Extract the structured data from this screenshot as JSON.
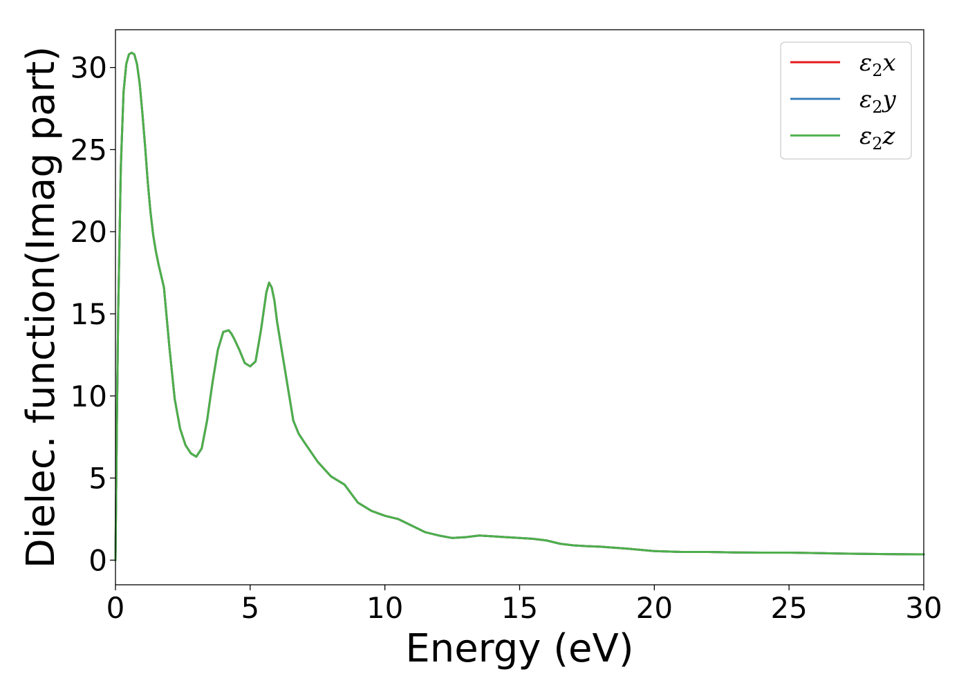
{
  "chart_data": {
    "type": "line",
    "title": "",
    "xlabel": "Energy (eV)",
    "ylabel": "Dielec. function(Imag part)",
    "xlim": [
      0,
      30
    ],
    "ylim": [
      -1.5,
      32.3
    ],
    "xticks": [
      0,
      5,
      10,
      15,
      20,
      25,
      30
    ],
    "yticks": [
      0,
      5,
      10,
      15,
      20,
      25,
      30
    ],
    "grid": false,
    "legend_position": "top-right",
    "series": [
      {
        "name": "ε₂x",
        "legend_base": "ε",
        "legend_sub": "2",
        "legend_var": "x",
        "color": "#e41a1c",
        "x": [
          0,
          0.05,
          0.1,
          0.2,
          0.3,
          0.4,
          0.5,
          0.6,
          0.7,
          0.8,
          0.9,
          1.0,
          1.1,
          1.2,
          1.3,
          1.4,
          1.5,
          1.6,
          1.7,
          1.8,
          2.0,
          2.2,
          2.4,
          2.6,
          2.8,
          3.0,
          3.2,
          3.4,
          3.6,
          3.8,
          4.0,
          4.2,
          4.3,
          4.4,
          4.6,
          4.8,
          5.0,
          5.2,
          5.4,
          5.6,
          5.7,
          5.8,
          5.9,
          6.0,
          6.2,
          6.4,
          6.6,
          6.8,
          7.0,
          7.5,
          8.0,
          8.5,
          9.0,
          9.5,
          10.0,
          10.5,
          11.0,
          11.5,
          12.0,
          12.5,
          13.0,
          13.5,
          14.0,
          14.5,
          15.0,
          15.5,
          16.0,
          16.5,
          17.0,
          17.5,
          18.0,
          19.0,
          20.0,
          21.0,
          22.0,
          23.0,
          24.0,
          25.0,
          26.0,
          27.0,
          28.0,
          29.0,
          30.0
        ],
        "y": [
          0,
          8.0,
          15.0,
          24.0,
          28.5,
          30.2,
          30.8,
          30.9,
          30.8,
          30.2,
          29.0,
          27.2,
          25.2,
          23.0,
          21.2,
          19.8,
          18.8,
          18.0,
          17.3,
          16.6,
          13.0,
          9.8,
          8.0,
          7.0,
          6.5,
          6.3,
          6.8,
          8.5,
          10.8,
          12.8,
          13.9,
          14.0,
          13.8,
          13.5,
          12.8,
          12.0,
          11.8,
          12.1,
          14.0,
          16.3,
          16.9,
          16.6,
          15.8,
          14.5,
          12.5,
          10.5,
          8.5,
          7.7,
          7.2,
          6.0,
          5.1,
          4.6,
          3.5,
          3.0,
          2.7,
          2.5,
          2.1,
          1.7,
          1.5,
          1.35,
          1.4,
          1.5,
          1.45,
          1.4,
          1.35,
          1.3,
          1.2,
          1.0,
          0.9,
          0.85,
          0.82,
          0.7,
          0.55,
          0.5,
          0.5,
          0.47,
          0.46,
          0.46,
          0.43,
          0.4,
          0.38,
          0.36,
          0.35
        ]
      },
      {
        "name": "ε₂y",
        "legend_base": "ε",
        "legend_sub": "2",
        "legend_var": "y",
        "color": "#377eb8",
        "x": [
          0,
          0.05,
          0.1,
          0.2,
          0.3,
          0.4,
          0.5,
          0.6,
          0.7,
          0.8,
          0.9,
          1.0,
          1.1,
          1.2,
          1.3,
          1.4,
          1.5,
          1.6,
          1.7,
          1.8,
          2.0,
          2.2,
          2.4,
          2.6,
          2.8,
          3.0,
          3.2,
          3.4,
          3.6,
          3.8,
          4.0,
          4.2,
          4.3,
          4.4,
          4.6,
          4.8,
          5.0,
          5.2,
          5.4,
          5.6,
          5.7,
          5.8,
          5.9,
          6.0,
          6.2,
          6.4,
          6.6,
          6.8,
          7.0,
          7.5,
          8.0,
          8.5,
          9.0,
          9.5,
          10.0,
          10.5,
          11.0,
          11.5,
          12.0,
          12.5,
          13.0,
          13.5,
          14.0,
          14.5,
          15.0,
          15.5,
          16.0,
          16.5,
          17.0,
          17.5,
          18.0,
          19.0,
          20.0,
          21.0,
          22.0,
          23.0,
          24.0,
          25.0,
          26.0,
          27.0,
          28.0,
          29.0,
          30.0
        ],
        "y": [
          0,
          8.0,
          15.0,
          24.0,
          28.5,
          30.2,
          30.8,
          30.9,
          30.8,
          30.2,
          29.0,
          27.2,
          25.2,
          23.0,
          21.2,
          19.8,
          18.8,
          18.0,
          17.3,
          16.6,
          13.0,
          9.8,
          8.0,
          7.0,
          6.5,
          6.3,
          6.8,
          8.5,
          10.8,
          12.8,
          13.9,
          14.0,
          13.8,
          13.5,
          12.8,
          12.0,
          11.8,
          12.1,
          14.0,
          16.3,
          16.9,
          16.6,
          15.8,
          14.5,
          12.5,
          10.5,
          8.5,
          7.7,
          7.2,
          6.0,
          5.1,
          4.6,
          3.5,
          3.0,
          2.7,
          2.5,
          2.1,
          1.7,
          1.5,
          1.35,
          1.4,
          1.5,
          1.45,
          1.4,
          1.35,
          1.3,
          1.2,
          1.0,
          0.9,
          0.85,
          0.82,
          0.7,
          0.55,
          0.5,
          0.5,
          0.47,
          0.46,
          0.46,
          0.43,
          0.4,
          0.38,
          0.36,
          0.35
        ]
      },
      {
        "name": "ε₂z",
        "legend_base": "ε",
        "legend_sub": "2",
        "legend_var": "z",
        "color": "#4daf4a",
        "x": [
          0,
          0.05,
          0.1,
          0.2,
          0.3,
          0.4,
          0.5,
          0.6,
          0.7,
          0.8,
          0.9,
          1.0,
          1.1,
          1.2,
          1.3,
          1.4,
          1.5,
          1.6,
          1.7,
          1.8,
          2.0,
          2.2,
          2.4,
          2.6,
          2.8,
          3.0,
          3.2,
          3.4,
          3.6,
          3.8,
          4.0,
          4.2,
          4.3,
          4.4,
          4.6,
          4.8,
          5.0,
          5.2,
          5.4,
          5.6,
          5.7,
          5.8,
          5.9,
          6.0,
          6.2,
          6.4,
          6.6,
          6.8,
          7.0,
          7.5,
          8.0,
          8.5,
          9.0,
          9.5,
          10.0,
          10.5,
          11.0,
          11.5,
          12.0,
          12.5,
          13.0,
          13.5,
          14.0,
          14.5,
          15.0,
          15.5,
          16.0,
          16.5,
          17.0,
          17.5,
          18.0,
          19.0,
          20.0,
          21.0,
          22.0,
          23.0,
          24.0,
          25.0,
          26.0,
          27.0,
          28.0,
          29.0,
          30.0
        ],
        "y": [
          0,
          8.0,
          15.0,
          24.0,
          28.5,
          30.2,
          30.8,
          30.9,
          30.8,
          30.2,
          29.0,
          27.2,
          25.2,
          23.0,
          21.2,
          19.8,
          18.8,
          18.0,
          17.3,
          16.6,
          13.0,
          9.8,
          8.0,
          7.0,
          6.5,
          6.3,
          6.8,
          8.5,
          10.8,
          12.8,
          13.9,
          14.0,
          13.8,
          13.5,
          12.8,
          12.0,
          11.8,
          12.1,
          14.0,
          16.3,
          16.9,
          16.6,
          15.8,
          14.5,
          12.5,
          10.5,
          8.5,
          7.7,
          7.2,
          6.0,
          5.1,
          4.6,
          3.5,
          3.0,
          2.7,
          2.5,
          2.1,
          1.7,
          1.5,
          1.35,
          1.4,
          1.5,
          1.45,
          1.4,
          1.35,
          1.3,
          1.2,
          1.0,
          0.9,
          0.85,
          0.82,
          0.7,
          0.55,
          0.5,
          0.5,
          0.47,
          0.46,
          0.46,
          0.43,
          0.4,
          0.38,
          0.36,
          0.35
        ]
      }
    ]
  }
}
